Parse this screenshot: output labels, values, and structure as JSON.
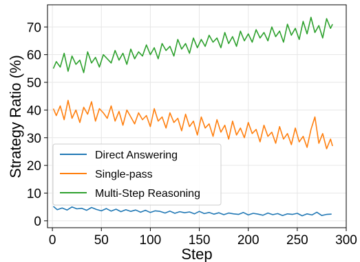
{
  "chart_data": {
    "type": "line",
    "title": "",
    "xlabel": "Step",
    "ylabel": "Strategy Ratio (%)",
    "xlim": [
      -5,
      300
    ],
    "ylim": [
      -2.5,
      78
    ],
    "xticks": [
      0,
      50,
      100,
      150,
      200,
      250,
      300
    ],
    "yticks": [
      0,
      10,
      20,
      30,
      40,
      50,
      60,
      70
    ],
    "grid": true,
    "legend_position": "lower-left",
    "series": [
      {
        "name": "Direct Answering",
        "color": "#1f77b4",
        "x": [
          1,
          5,
          10,
          15,
          20,
          25,
          30,
          35,
          40,
          45,
          50,
          55,
          60,
          65,
          70,
          75,
          80,
          85,
          90,
          95,
          100,
          105,
          110,
          115,
          120,
          125,
          130,
          135,
          140,
          145,
          150,
          155,
          160,
          165,
          170,
          175,
          180,
          185,
          190,
          195,
          200,
          205,
          210,
          215,
          220,
          225,
          230,
          235,
          240,
          245,
          250,
          255,
          260,
          265,
          270,
          275,
          280,
          285
        ],
        "y": [
          5.2,
          4.0,
          4.6,
          3.9,
          5.0,
          4.3,
          4.5,
          3.8,
          4.8,
          4.1,
          3.6,
          4.4,
          3.5,
          4.2,
          3.3,
          4.0,
          3.4,
          3.9,
          3.1,
          3.8,
          3.0,
          3.6,
          3.4,
          2.8,
          3.5,
          2.7,
          3.3,
          2.9,
          3.2,
          2.5,
          3.4,
          2.6,
          3.0,
          2.4,
          2.9,
          2.2,
          2.8,
          2.5,
          2.3,
          3.0,
          2.1,
          2.7,
          2.4,
          2.0,
          2.8,
          2.2,
          2.6,
          1.9,
          2.5,
          2.3,
          2.7,
          1.8,
          2.5,
          2.1,
          3.1,
          1.9,
          2.3,
          2.4
        ]
      },
      {
        "name": "Single-pass",
        "color": "#ff7f0e",
        "x": [
          1,
          4,
          8,
          12,
          16,
          20,
          24,
          28,
          32,
          36,
          40,
          44,
          48,
          52,
          56,
          60,
          64,
          68,
          72,
          76,
          80,
          84,
          88,
          92,
          96,
          100,
          104,
          108,
          112,
          116,
          120,
          124,
          128,
          132,
          136,
          140,
          144,
          148,
          152,
          156,
          160,
          164,
          168,
          172,
          176,
          180,
          184,
          188,
          192,
          196,
          200,
          204,
          208,
          212,
          216,
          220,
          224,
          228,
          232,
          236,
          240,
          244,
          248,
          252,
          256,
          260,
          264,
          268,
          272,
          276,
          280,
          284,
          286
        ],
        "y": [
          40.5,
          38.0,
          41.5,
          36.5,
          43.5,
          37.0,
          40.0,
          35.5,
          41.0,
          38.5,
          43.0,
          36.0,
          40.5,
          39.0,
          37.0,
          41.5,
          36.0,
          39.5,
          34.5,
          40.0,
          37.5,
          35.0,
          39.0,
          36.5,
          38.0,
          34.0,
          40.5,
          36.0,
          37.5,
          33.5,
          39.0,
          35.5,
          37.0,
          32.5,
          38.5,
          34.0,
          36.0,
          31.0,
          37.5,
          33.5,
          35.0,
          30.5,
          36.5,
          32.0,
          34.5,
          29.5,
          36.0,
          31.0,
          33.5,
          30.0,
          35.5,
          31.5,
          33.0,
          28.5,
          34.5,
          30.5,
          32.0,
          28.0,
          34.0,
          29.5,
          31.5,
          27.5,
          33.5,
          28.5,
          30.5,
          26.5,
          33.0,
          37.5,
          28.0,
          31.5,
          26.0,
          29.5,
          27.0
        ]
      },
      {
        "name": "Multi-Step Reasoning",
        "color": "#2ca02c",
        "x": [
          1,
          4,
          8,
          12,
          16,
          20,
          24,
          28,
          32,
          36,
          40,
          44,
          48,
          52,
          56,
          60,
          64,
          68,
          72,
          76,
          80,
          84,
          88,
          92,
          96,
          100,
          104,
          108,
          112,
          116,
          120,
          124,
          128,
          132,
          136,
          140,
          144,
          148,
          152,
          156,
          160,
          164,
          168,
          172,
          176,
          180,
          184,
          188,
          192,
          196,
          200,
          204,
          208,
          212,
          216,
          220,
          224,
          228,
          232,
          236,
          240,
          244,
          248,
          252,
          256,
          260,
          264,
          268,
          272,
          276,
          280,
          284,
          286
        ],
        "y": [
          55.0,
          57.5,
          55.5,
          60.5,
          54.0,
          59.5,
          56.5,
          58.0,
          53.5,
          61.0,
          57.0,
          59.0,
          55.5,
          60.0,
          58.5,
          57.0,
          61.5,
          58.0,
          60.5,
          56.5,
          62.0,
          58.5,
          61.0,
          59.5,
          63.5,
          60.0,
          62.5,
          58.5,
          64.0,
          61.5,
          63.0,
          59.5,
          65.5,
          62.0,
          64.0,
          60.5,
          66.0,
          62.5,
          65.5,
          63.0,
          67.0,
          64.5,
          66.0,
          62.5,
          68.0,
          64.0,
          66.5,
          63.0,
          68.5,
          65.0,
          67.5,
          64.5,
          69.0,
          66.0,
          68.0,
          65.0,
          70.0,
          66.5,
          68.5,
          64.5,
          71.0,
          67.0,
          69.5,
          65.5,
          72.0,
          67.5,
          73.5,
          68.0,
          70.5,
          66.0,
          73.0,
          69.5,
          71.0
        ]
      }
    ]
  }
}
